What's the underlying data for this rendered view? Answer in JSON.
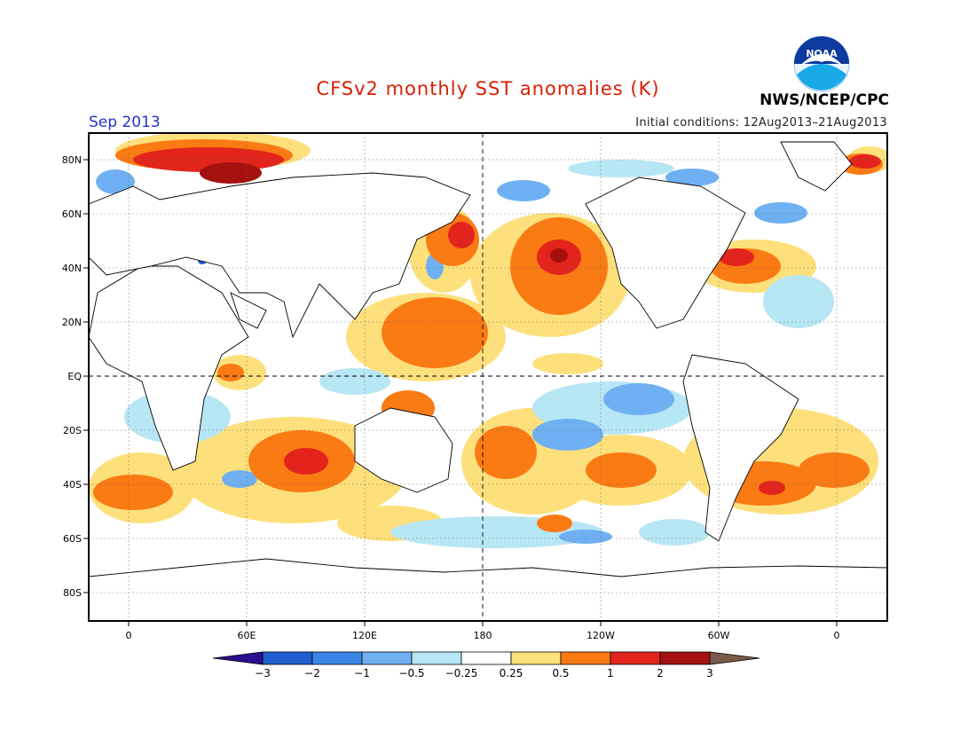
{
  "header": {
    "title": "CFSv2 monthly SST anomalies (K)",
    "month": "Sep 2013",
    "initial_conditions": "Initial conditions: 12Aug2013–21Aug2013",
    "agency": "NWS/NCEP/CPC",
    "logo_text": "NOAA"
  },
  "map": {
    "lat_labels": [
      "80N",
      "60N",
      "40N",
      "20N",
      "EQ",
      "20S",
      "40S",
      "60S",
      "80S"
    ],
    "lon_labels": [
      "0",
      "60E",
      "120E",
      "180",
      "120W",
      "60W",
      "0"
    ]
  },
  "colorbar": {
    "labels": [
      "−3",
      "−2",
      "−1",
      "−0.5",
      "−0.25",
      "0.25",
      "0.5",
      "1",
      "2",
      "3"
    ],
    "colors": [
      "#2c0f8f",
      "#1f5fd0",
      "#3a86e6",
      "#6fb0f2",
      "#b7e6f4",
      "#ffffff",
      "#fde07b",
      "#fa7a14",
      "#e3241c",
      "#a4110f",
      "#7a5a4a"
    ]
  }
}
